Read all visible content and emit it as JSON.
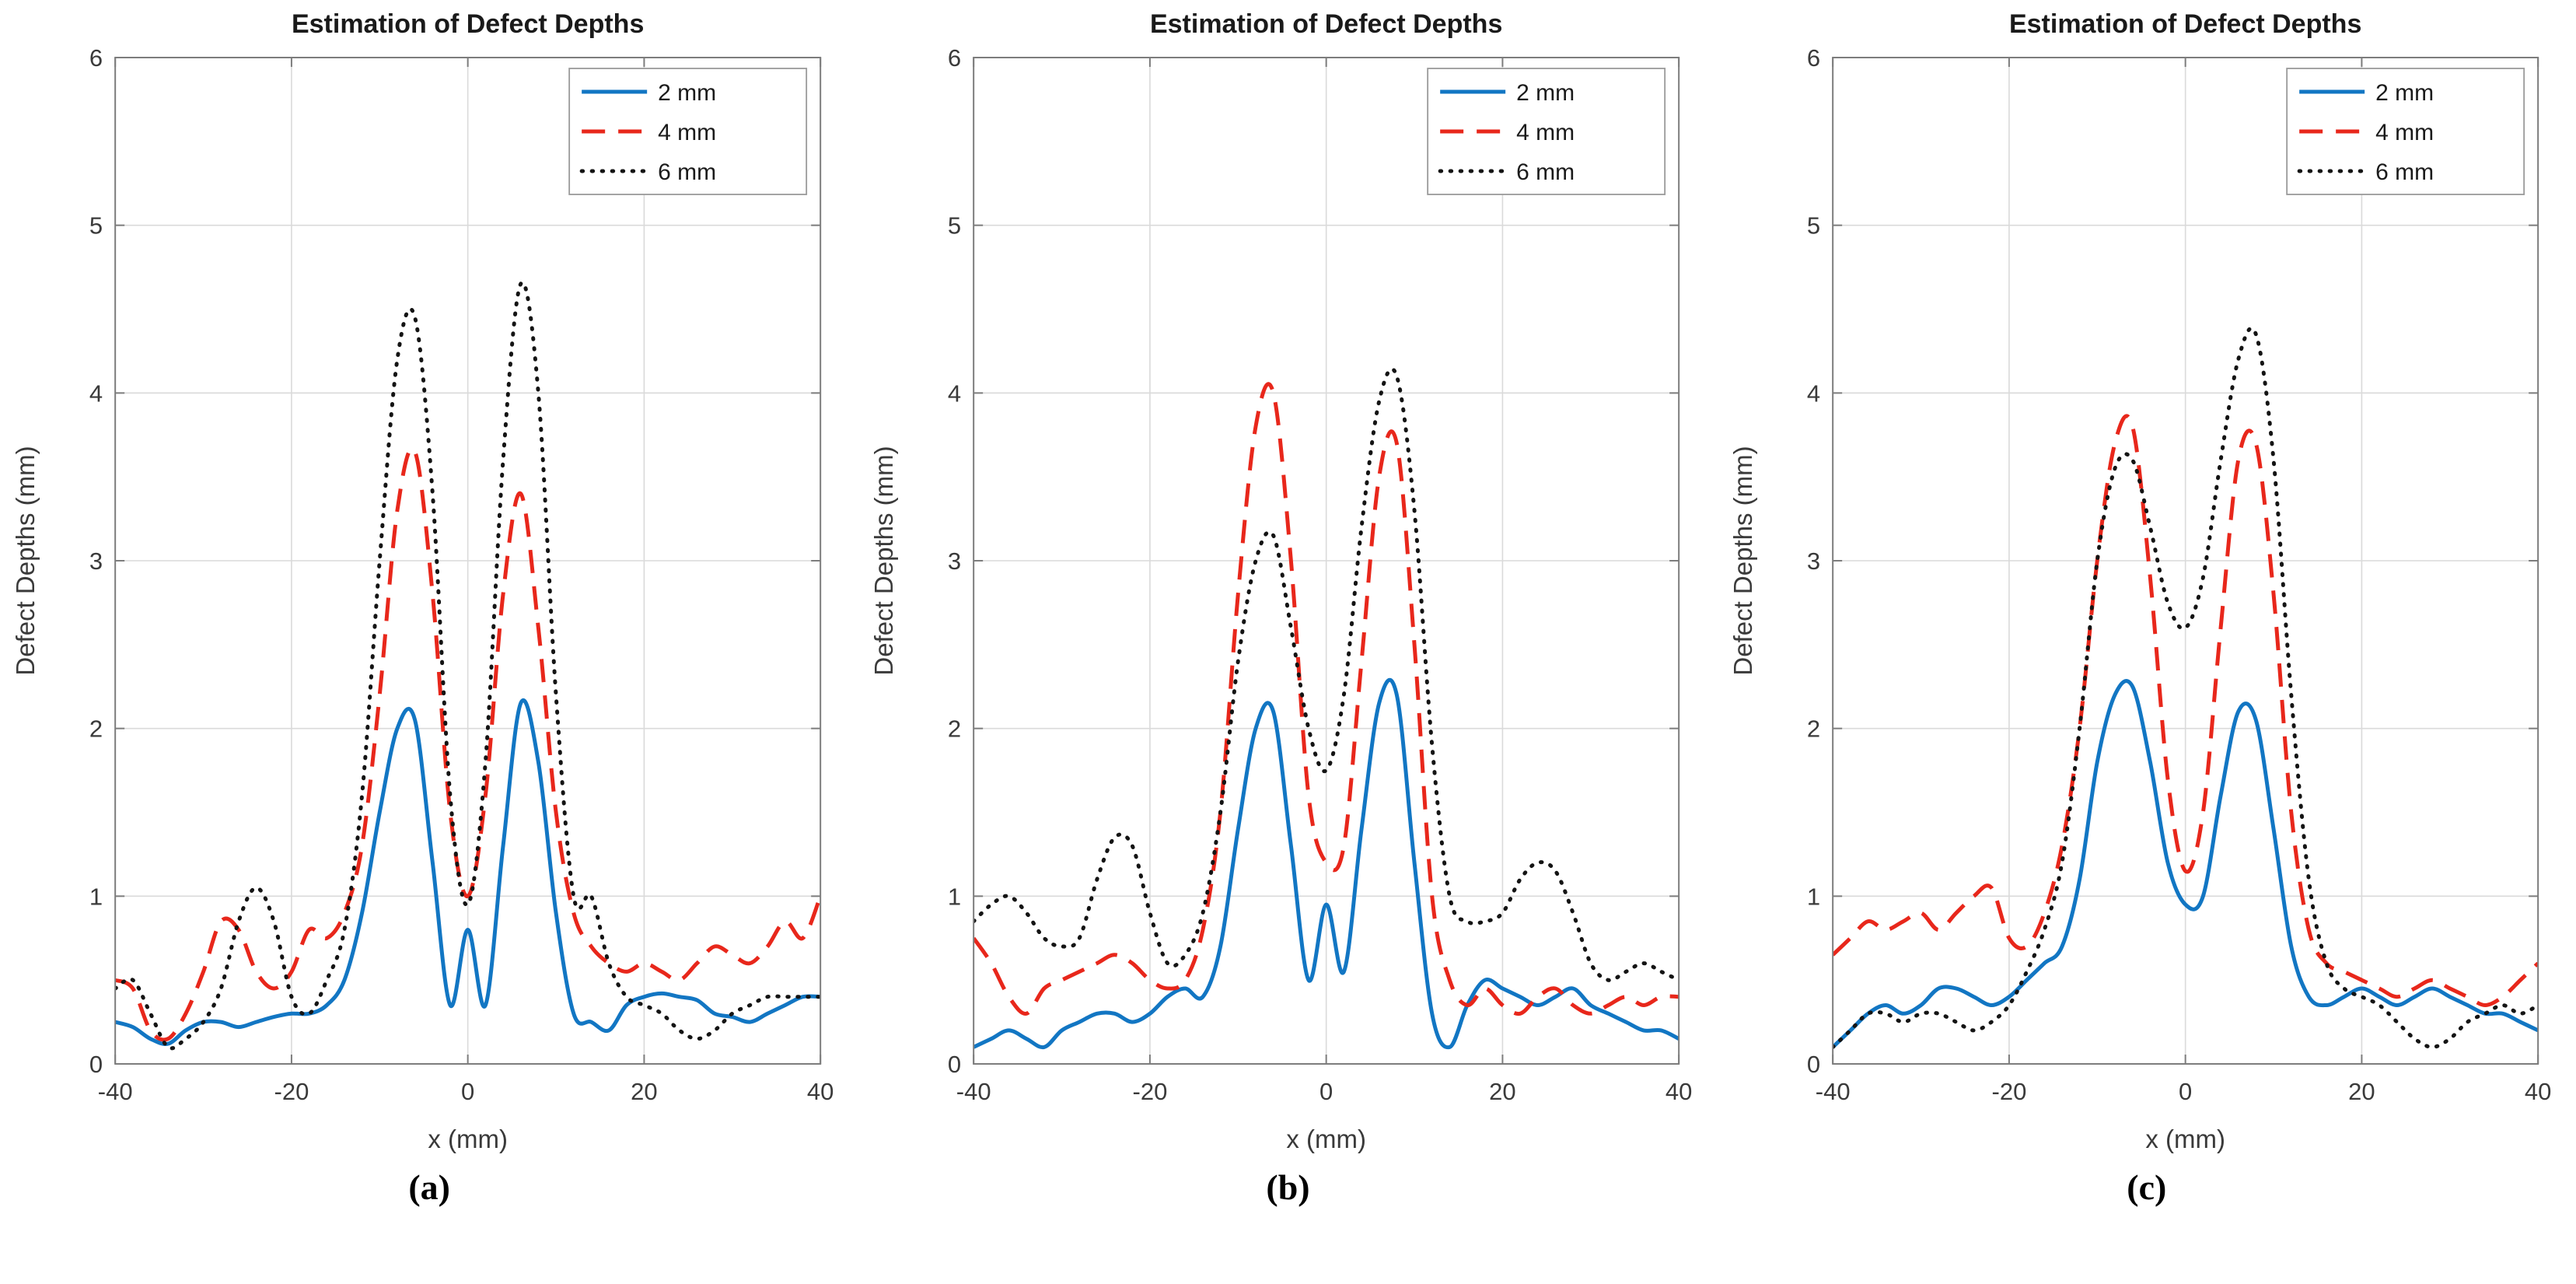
{
  "chart_data": [
    {
      "type": "line",
      "title": "Estimation of Defect Depths",
      "xlabel": "x (mm)",
      "ylabel": "Defect Depths (mm)",
      "caption": "(a)",
      "xlim": [
        -40,
        40
      ],
      "ylim": [
        0,
        6
      ],
      "xticks": [
        -40,
        -20,
        0,
        20,
        40
      ],
      "yticks": [
        0,
        1,
        2,
        3,
        4,
        5,
        6
      ],
      "grid": true,
      "legend_position": "top-right",
      "x": [
        -40,
        -38,
        -36,
        -34,
        -32,
        -30,
        -28,
        -26,
        -24,
        -22,
        -20,
        -18,
        -16,
        -14,
        -12,
        -10,
        -8,
        -6,
        -4,
        -2,
        0,
        2,
        4,
        6,
        8,
        10,
        12,
        14,
        16,
        18,
        20,
        22,
        24,
        26,
        28,
        30,
        32,
        34,
        36,
        38,
        40
      ],
      "series": [
        {
          "name": "2 mm",
          "color": "#1276c3",
          "style": "solid",
          "values": [
            0.25,
            0.22,
            0.15,
            0.12,
            0.2,
            0.25,
            0.25,
            0.22,
            0.25,
            0.28,
            0.3,
            0.3,
            0.35,
            0.5,
            0.9,
            1.5,
            2.0,
            2.05,
            1.2,
            0.35,
            0.8,
            0.35,
            1.3,
            2.15,
            1.8,
            0.9,
            0.3,
            0.25,
            0.2,
            0.35,
            0.4,
            0.42,
            0.4,
            0.38,
            0.3,
            0.28,
            0.25,
            0.3,
            0.35,
            0.4,
            0.4
          ]
        },
        {
          "name": "4 mm",
          "color": "#e8271b",
          "style": "dashed",
          "values": [
            0.5,
            0.45,
            0.2,
            0.15,
            0.3,
            0.55,
            0.85,
            0.8,
            0.55,
            0.45,
            0.55,
            0.8,
            0.75,
            0.9,
            1.3,
            2.2,
            3.3,
            3.65,
            2.8,
            1.5,
            1.0,
            1.6,
            2.8,
            3.4,
            2.6,
            1.5,
            0.9,
            0.7,
            0.6,
            0.55,
            0.6,
            0.55,
            0.5,
            0.6,
            0.7,
            0.65,
            0.6,
            0.7,
            0.85,
            0.75,
            1.0
          ]
        },
        {
          "name": "6 mm",
          "color": "#141414",
          "style": "dotted",
          "values": [
            0.45,
            0.5,
            0.3,
            0.1,
            0.15,
            0.25,
            0.45,
            0.85,
            1.05,
            0.85,
            0.4,
            0.3,
            0.5,
            0.8,
            1.6,
            3.0,
            4.2,
            4.45,
            3.4,
            1.6,
            0.95,
            1.8,
            3.6,
            4.65,
            4.0,
            2.2,
            1.0,
            1.0,
            0.6,
            0.4,
            0.35,
            0.3,
            0.2,
            0.15,
            0.2,
            0.3,
            0.35,
            0.4,
            0.4,
            0.4,
            0.4
          ]
        }
      ]
    },
    {
      "type": "line",
      "title": "Estimation of Defect Depths",
      "xlabel": "x (mm)",
      "ylabel": "Defect Depths (mm)",
      "caption": "(b)",
      "xlim": [
        -40,
        40
      ],
      "ylim": [
        0,
        6
      ],
      "xticks": [
        -40,
        -20,
        0,
        20,
        40
      ],
      "yticks": [
        0,
        1,
        2,
        3,
        4,
        5,
        6
      ],
      "grid": true,
      "legend_position": "top-right",
      "x": [
        -40,
        -38,
        -36,
        -34,
        -32,
        -30,
        -28,
        -26,
        -24,
        -22,
        -20,
        -18,
        -16,
        -14,
        -12,
        -10,
        -8,
        -6,
        -4,
        -2,
        0,
        2,
        4,
        6,
        8,
        10,
        12,
        14,
        16,
        18,
        20,
        22,
        24,
        26,
        28,
        30,
        32,
        34,
        36,
        38,
        40
      ],
      "series": [
        {
          "name": "2 mm",
          "color": "#1276c3",
          "style": "solid",
          "values": [
            0.1,
            0.15,
            0.2,
            0.15,
            0.1,
            0.2,
            0.25,
            0.3,
            0.3,
            0.25,
            0.3,
            0.4,
            0.45,
            0.4,
            0.7,
            1.4,
            2.0,
            2.1,
            1.3,
            0.5,
            0.95,
            0.55,
            1.4,
            2.15,
            2.2,
            1.2,
            0.3,
            0.1,
            0.35,
            0.5,
            0.45,
            0.4,
            0.35,
            0.4,
            0.45,
            0.35,
            0.3,
            0.25,
            0.2,
            0.2,
            0.15
          ]
        },
        {
          "name": "4 mm",
          "color": "#e8271b",
          "style": "dashed",
          "values": [
            0.75,
            0.6,
            0.4,
            0.3,
            0.45,
            0.5,
            0.55,
            0.6,
            0.65,
            0.6,
            0.5,
            0.45,
            0.5,
            0.8,
            1.5,
            2.8,
            3.8,
            4.0,
            3.0,
            1.6,
            1.2,
            1.3,
            2.4,
            3.5,
            3.7,
            2.5,
            1.0,
            0.5,
            0.35,
            0.45,
            0.35,
            0.3,
            0.4,
            0.45,
            0.35,
            0.3,
            0.35,
            0.4,
            0.35,
            0.4,
            0.4
          ]
        },
        {
          "name": "6 mm",
          "color": "#141414",
          "style": "dotted",
          "values": [
            0.85,
            0.95,
            1.0,
            0.9,
            0.75,
            0.7,
            0.75,
            1.1,
            1.35,
            1.3,
            0.9,
            0.6,
            0.65,
            0.9,
            1.5,
            2.4,
            3.0,
            3.15,
            2.6,
            2.0,
            1.75,
            2.2,
            3.2,
            3.95,
            4.1,
            3.3,
            1.9,
            1.0,
            0.85,
            0.85,
            0.9,
            1.1,
            1.2,
            1.15,
            0.9,
            0.6,
            0.5,
            0.55,
            0.6,
            0.55,
            0.5
          ]
        }
      ]
    },
    {
      "type": "line",
      "title": "Estimation of Defect Depths",
      "xlabel": "x (mm)",
      "ylabel": "Defect Depths (mm)",
      "caption": "(c)",
      "xlim": [
        -40,
        40
      ],
      "ylim": [
        0,
        6
      ],
      "xticks": [
        -40,
        -20,
        0,
        20,
        40
      ],
      "yticks": [
        0,
        1,
        2,
        3,
        4,
        5,
        6
      ],
      "grid": true,
      "legend_position": "top-right",
      "x": [
        -40,
        -38,
        -36,
        -34,
        -32,
        -30,
        -28,
        -26,
        -24,
        -22,
        -20,
        -18,
        -16,
        -14,
        -12,
        -10,
        -8,
        -6,
        -4,
        -2,
        0,
        2,
        4,
        6,
        8,
        10,
        12,
        14,
        16,
        18,
        20,
        22,
        24,
        26,
        28,
        30,
        32,
        34,
        36,
        38,
        40
      ],
      "series": [
        {
          "name": "2 mm",
          "color": "#1276c3",
          "style": "solid",
          "values": [
            0.1,
            0.2,
            0.3,
            0.35,
            0.3,
            0.35,
            0.45,
            0.45,
            0.4,
            0.35,
            0.4,
            0.5,
            0.6,
            0.7,
            1.1,
            1.8,
            2.2,
            2.25,
            1.8,
            1.2,
            0.95,
            1.0,
            1.6,
            2.1,
            2.05,
            1.4,
            0.7,
            0.4,
            0.35,
            0.4,
            0.45,
            0.4,
            0.35,
            0.4,
            0.45,
            0.4,
            0.35,
            0.3,
            0.3,
            0.25,
            0.2
          ]
        },
        {
          "name": "4 mm",
          "color": "#e8271b",
          "style": "dashed",
          "values": [
            0.65,
            0.75,
            0.85,
            0.8,
            0.85,
            0.9,
            0.8,
            0.9,
            1.0,
            1.05,
            0.75,
            0.7,
            0.9,
            1.3,
            2.0,
            3.0,
            3.7,
            3.8,
            2.9,
            1.7,
            1.15,
            1.5,
            2.6,
            3.6,
            3.7,
            2.8,
            1.5,
            0.8,
            0.6,
            0.55,
            0.5,
            0.45,
            0.4,
            0.45,
            0.5,
            0.45,
            0.4,
            0.35,
            0.4,
            0.5,
            0.6
          ]
        },
        {
          "name": "6 mm",
          "color": "#141414",
          "style": "dotted",
          "values": [
            0.1,
            0.2,
            0.3,
            0.3,
            0.25,
            0.3,
            0.3,
            0.25,
            0.2,
            0.25,
            0.35,
            0.55,
            0.8,
            1.2,
            2.0,
            3.0,
            3.55,
            3.6,
            3.2,
            2.75,
            2.6,
            2.9,
            3.6,
            4.2,
            4.35,
            3.6,
            2.2,
            1.1,
            0.6,
            0.45,
            0.4,
            0.35,
            0.25,
            0.15,
            0.1,
            0.15,
            0.25,
            0.3,
            0.35,
            0.3,
            0.35
          ]
        }
      ]
    }
  ],
  "style": {
    "grid_color": "#dadada",
    "box_color": "#7d7d7d",
    "tick_text_color": "#3a3a3a",
    "title_color": "#1a1a1a",
    "legend_border_color": "#9a9a9a"
  }
}
